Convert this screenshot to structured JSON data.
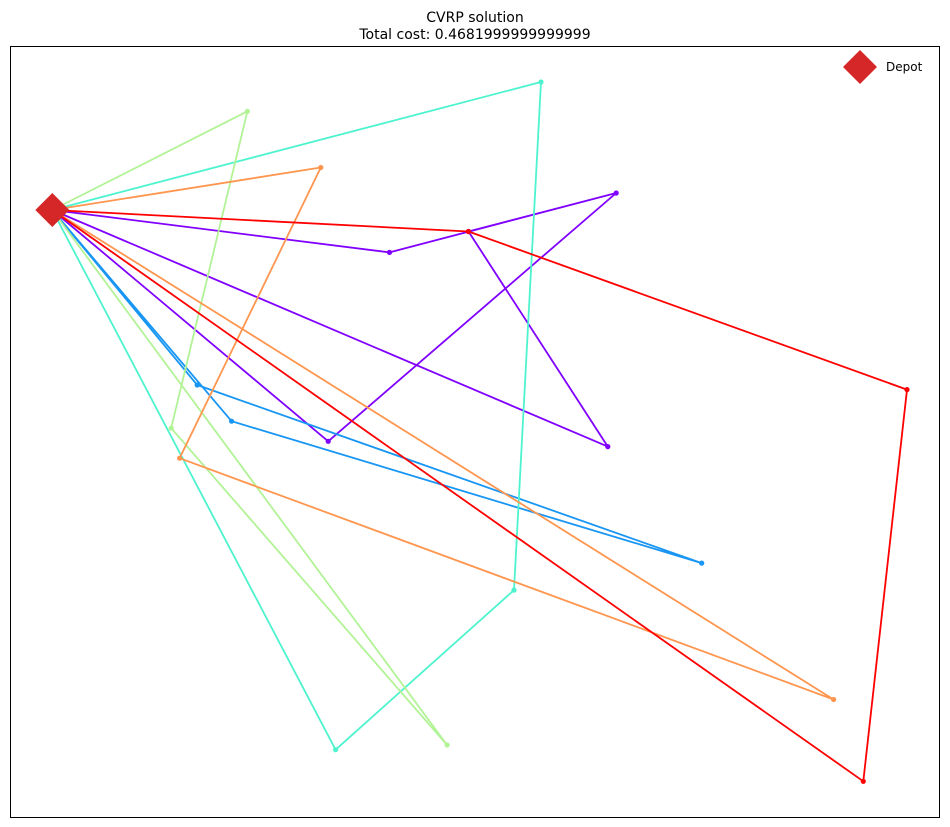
{
  "chart_data": {
    "type": "line",
    "title": "CVRP solution",
    "subtitle": "Total cost: 0.4681999999999999",
    "xlabel": "",
    "ylabel": "",
    "xlim": [
      0,
      1
    ],
    "ylim": [
      0,
      1
    ],
    "grid": false,
    "ticks_visible": false,
    "legend": {
      "placement": "top-right",
      "entries": [
        "Depot"
      ]
    },
    "depot": {
      "label": "Depot",
      "x": 0.045,
      "y": 0.788,
      "color": "#d62728",
      "marker": "diamond"
    },
    "routes": [
      {
        "color": "#8000ff",
        "points": [
          [
            0.045,
            0.788
          ],
          [
            0.408,
            0.733
          ],
          [
            0.652,
            0.81
          ],
          [
            0.493,
            0.76
          ],
          [
            0.643,
            0.481
          ],
          [
            0.045,
            0.788
          ]
        ]
      },
      {
        "color": "#8000ff",
        "points": [
          [
            0.045,
            0.788
          ],
          [
            0.342,
            0.488
          ],
          [
            0.652,
            0.81
          ]
        ]
      },
      {
        "color": "#1996f3",
        "points": [
          [
            0.045,
            0.788
          ],
          [
            0.201,
            0.561
          ],
          [
            0.744,
            0.33
          ],
          [
            0.238,
            0.514
          ],
          [
            0.045,
            0.788
          ]
        ]
      },
      {
        "color": "#4df3ce",
        "points": [
          [
            0.045,
            0.788
          ],
          [
            0.571,
            0.954
          ],
          [
            0.542,
            0.295
          ],
          [
            0.35,
            0.088
          ],
          [
            0.045,
            0.788
          ]
        ]
      },
      {
        "color": "#b2f396",
        "points": [
          [
            0.045,
            0.788
          ],
          [
            0.255,
            0.916
          ],
          [
            0.173,
            0.505
          ],
          [
            0.47,
            0.094
          ],
          [
            0.045,
            0.788
          ]
        ]
      },
      {
        "color": "#ff964f",
        "points": [
          [
            0.045,
            0.788
          ],
          [
            0.334,
            0.843
          ],
          [
            0.182,
            0.466
          ],
          [
            0.886,
            0.153
          ],
          [
            0.045,
            0.788
          ]
        ]
      },
      {
        "color": "#ff0000",
        "points": [
          [
            0.045,
            0.788
          ],
          [
            0.493,
            0.76
          ],
          [
            0.965,
            0.555
          ],
          [
            0.918,
            0.047
          ],
          [
            0.045,
            0.788
          ]
        ]
      }
    ]
  }
}
